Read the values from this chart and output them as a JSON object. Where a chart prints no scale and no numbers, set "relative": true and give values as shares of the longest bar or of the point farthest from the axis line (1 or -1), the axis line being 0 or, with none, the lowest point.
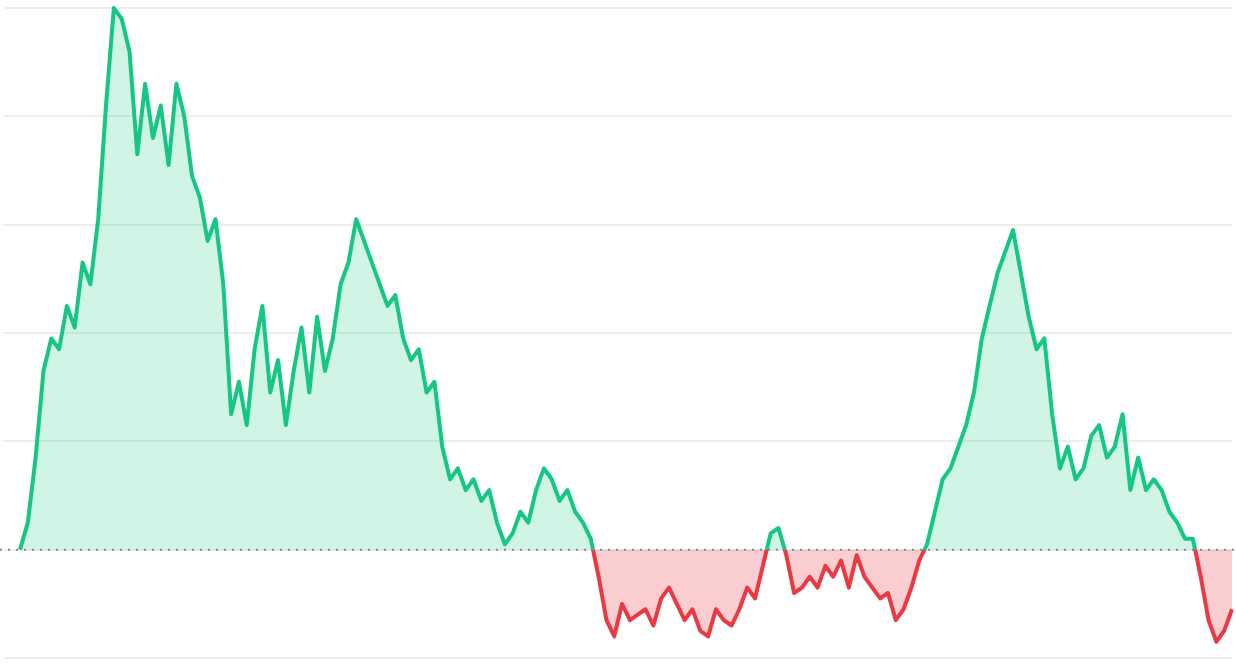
{
  "chart_data": {
    "type": "area",
    "relative": true,
    "grid": "y",
    "legend": false,
    "marker": "none",
    "line_style": "solid",
    "categories": [
      null,
      null,
      null,
      null,
      null,
      null,
      null,
      null,
      null,
      null,
      null,
      null,
      null,
      null,
      null,
      null,
      null,
      null,
      null,
      null,
      null,
      null,
      null,
      null,
      null,
      null,
      null,
      null,
      null,
      null,
      null,
      null,
      null,
      null,
      null,
      null,
      null,
      null,
      null,
      null,
      null,
      null,
      null,
      null,
      null,
      null,
      null,
      null,
      null,
      null,
      null,
      null,
      null,
      null,
      null,
      null,
      null,
      null,
      null,
      null,
      null,
      null,
      null,
      null,
      null,
      null,
      null,
      null,
      null,
      null,
      null,
      null,
      null,
      null,
      null,
      null,
      null,
      null,
      null,
      null,
      null,
      null,
      null,
      null,
      null,
      null,
      null,
      null,
      null,
      null,
      null,
      null,
      null,
      null,
      null,
      null,
      null,
      null,
      null,
      null,
      null,
      null,
      null,
      null,
      null,
      null,
      null,
      null,
      null,
      null,
      null,
      null,
      null,
      null,
      null,
      null,
      null,
      null,
      null,
      null,
      null,
      null,
      null,
      null,
      null,
      null,
      null,
      null,
      null,
      null,
      null,
      null,
      null,
      null,
      null,
      null,
      null,
      null,
      null,
      null,
      null,
      null,
      null,
      null,
      null,
      null,
      null,
      null,
      null,
      null,
      null,
      null,
      null,
      null,
      null,
      null
    ],
    "series": [
      {
        "color": "#16c784",
        "values": [
          0,
          0.05,
          0.17,
          0.33,
          0.39,
          0.37,
          0.45,
          0.41,
          0.53,
          0.49,
          0.61,
          0.82,
          1,
          0.98,
          0.92,
          0.73,
          0.86,
          0.76,
          0.82,
          0.71,
          0.86,
          0.8,
          0.69,
          0.65,
          0.57,
          0.61,
          0.49,
          0.25,
          0.31,
          0.23,
          0.37,
          0.45,
          0.29,
          0.35,
          0.23,
          0.33,
          0.41,
          0.29,
          0.43,
          0.33,
          0.39,
          0.49,
          0.53,
          0.61,
          0.57,
          0.53,
          0.49,
          0.45,
          0.47,
          0.39,
          0.35,
          0.37,
          0.29,
          0.31,
          0.19,
          0.13,
          0.15,
          0.11,
          0.13,
          0.09,
          0.11,
          0.05,
          0.01,
          0.03,
          0.07,
          0.05,
          0.11,
          0.15,
          0.13,
          0.09,
          0.11,
          0.07,
          0.05,
          0.02,
          -0.05,
          -0.13,
          -0.16,
          -0.1,
          -0.13,
          -0.12,
          -0.11,
          -0.14,
          -0.09,
          -0.07,
          -0.1,
          -0.13,
          -0.11,
          -0.15,
          -0.16,
          -0.11,
          -0.13,
          -0.14,
          -0.11,
          -0.07,
          -0.09,
          -0.03,
          0.03,
          0.04,
          -0.01,
          -0.08,
          -0.07,
          -0.05,
          -0.07,
          -0.03,
          -0.05,
          -0.02,
          -0.07,
          -0.01,
          -0.05,
          -0.07,
          -0.09,
          -0.08,
          -0.13,
          -0.11,
          -0.07,
          -0.02,
          0.01,
          0.07,
          0.13,
          0.15,
          0.19,
          0.23,
          0.29,
          0.39,
          0.45,
          0.51,
          0.55,
          0.59,
          0.51,
          0.43,
          0.37,
          0.39,
          0.25,
          0.15,
          0.19,
          0.13,
          0.15,
          0.21,
          0.23,
          0.17,
          0.19,
          0.25,
          0.11,
          0.17,
          0.11,
          0.13,
          0.11,
          0.07,
          0.05,
          0.02,
          0.02,
          -0.05,
          -0.13,
          -0.17,
          -0.15,
          -0.11
        ],
        "colors": [
          "#16c784",
          "#16c784",
          "#16c784",
          "#16c784",
          "#16c784",
          "#16c784",
          "#16c784",
          "#16c784",
          "#16c784",
          "#16c784",
          "#16c784",
          "#16c784",
          "#16c784",
          "#16c784",
          "#16c784",
          "#16c784",
          "#16c784",
          "#16c784",
          "#16c784",
          "#16c784",
          "#16c784",
          "#16c784",
          "#16c784",
          "#16c784",
          "#16c784",
          "#16c784",
          "#16c784",
          "#16c784",
          "#16c784",
          "#16c784",
          "#16c784",
          "#16c784",
          "#16c784",
          "#16c784",
          "#16c784",
          "#16c784",
          "#16c784",
          "#16c784",
          "#16c784",
          "#16c784",
          "#16c784",
          "#16c784",
          "#16c784",
          "#16c784",
          "#16c784",
          "#16c784",
          "#16c784",
          "#16c784",
          "#16c784",
          "#16c784",
          "#16c784",
          "#16c784",
          "#16c784",
          "#16c784",
          "#16c784",
          "#16c784",
          "#16c784",
          "#16c784",
          "#16c784",
          "#16c784",
          "#16c784",
          "#16c784",
          "#16c784",
          "#16c784",
          "#16c784",
          "#16c784",
          "#16c784",
          "#16c784",
          "#16c784",
          "#16c784",
          "#16c784",
          "#16c784",
          "#16c784",
          "#16c784",
          "#ea3943",
          "#ea3943",
          "#ea3943",
          "#ea3943",
          "#ea3943",
          "#ea3943",
          "#ea3943",
          "#ea3943",
          "#ea3943",
          "#ea3943",
          "#ea3943",
          "#ea3943",
          "#ea3943",
          "#ea3943",
          "#ea3943",
          "#ea3943",
          "#ea3943",
          "#ea3943",
          "#ea3943",
          "#ea3943",
          "#ea3943",
          "#ea3943",
          "#16c784",
          "#16c784",
          "#ea3943",
          "#ea3943",
          "#ea3943",
          "#ea3943",
          "#ea3943",
          "#ea3943",
          "#ea3943",
          "#ea3943",
          "#ea3943",
          "#ea3943",
          "#ea3943",
          "#ea3943",
          "#ea3943",
          "#ea3943",
          "#ea3943",
          "#ea3943",
          "#ea3943",
          "#ea3943",
          "#16c784",
          "#16c784",
          "#16c784",
          "#16c784",
          "#16c784",
          "#16c784",
          "#16c784",
          "#16c784",
          "#16c784",
          "#16c784",
          "#16c784",
          "#16c784",
          "#16c784",
          "#16c784",
          "#16c784",
          "#16c784",
          "#16c784",
          "#16c784",
          "#16c784",
          "#16c784",
          "#16c784",
          "#16c784",
          "#16c784",
          "#16c784",
          "#16c784",
          "#16c784",
          "#16c784",
          "#16c784",
          "#16c784",
          "#16c784",
          "#16c784",
          "#16c784",
          "#16c784",
          "#16c784",
          "#16c784",
          "#ea3943",
          "#ea3943",
          "#ea3943",
          "#ea3943",
          "#ea3943"
        ]
      }
    ],
    "ref_lines": [
      {
        "axis": "y",
        "value": 0,
        "color": "#888888",
        "line_style": "dotted"
      }
    ]
  }
}
